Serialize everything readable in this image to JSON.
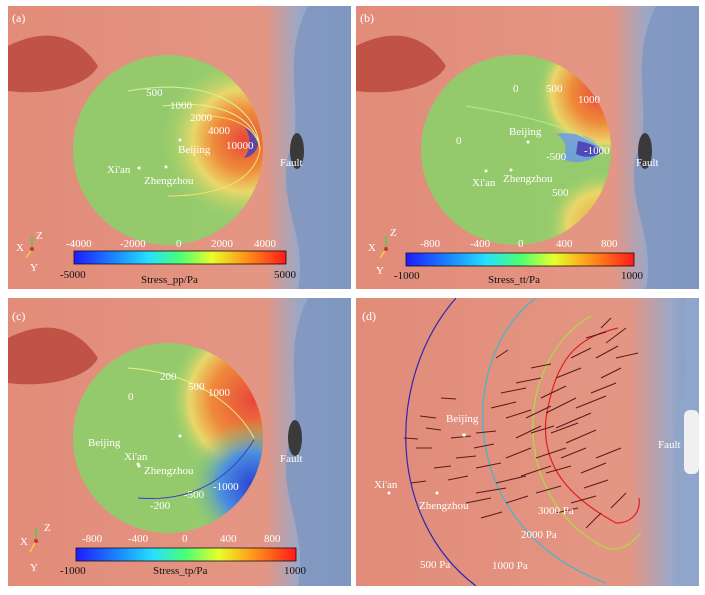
{
  "panels": {
    "a": {
      "tag": "(a)",
      "contours": [
        "500",
        "1000",
        "2000",
        "4000",
        "10000"
      ],
      "cities": [
        "Beijing",
        "Xi'an",
        "Zhengzhou"
      ],
      "fault": "Fault",
      "axes": [
        "X",
        "Y",
        "Z"
      ],
      "colorbar": {
        "ticks": [
          "-4000",
          "-2000",
          "0",
          "2000",
          "4000"
        ],
        "min": "-5000",
        "max": "5000",
        "label": "Stress_pp/Pa"
      }
    },
    "b": {
      "tag": "(b)",
      "contours": [
        "0",
        "500",
        "1000",
        "0",
        "-500",
        "-1000",
        "500"
      ],
      "cities": [
        "Beijing",
        "Xi'an",
        "Zhengzhou"
      ],
      "fault": "Fault",
      "axes": [
        "X",
        "Y",
        "Z"
      ],
      "colorbar": {
        "ticks": [
          "-800",
          "-400",
          "0",
          "400",
          "800"
        ],
        "min": "-1000",
        "max": "1000",
        "label": "Stress_tt/Pa"
      }
    },
    "c": {
      "tag": "(c)",
      "contours": [
        "200",
        "0",
        "500",
        "1000",
        "-1000",
        "-500",
        "-200"
      ],
      "cities": [
        "Beijing",
        "Xi'an",
        "Zhengzhou"
      ],
      "fault": "Fault",
      "axes": [
        "X",
        "Y",
        "Z"
      ],
      "colorbar": {
        "ticks": [
          "-800",
          "-400",
          "0",
          "400",
          "800"
        ],
        "min": "-1000",
        "max": "1000",
        "label": "Stress_tp/Pa"
      }
    },
    "d": {
      "tag": "(d)",
      "cities": [
        "Beijing",
        "Xi'an",
        "Zhengzhou"
      ],
      "fault": "Fault",
      "contours": [
        "3000 Pa",
        "2000 Pa",
        "1000 Pa",
        "500 Pa"
      ]
    }
  },
  "colors": {
    "ocean": "#7f97bf",
    "land": "#e08a78",
    "plateau": "#c0463c",
    "disk_green": "#8ecf6a",
    "hot": "#e8463a",
    "cold": "#4a3fb4"
  }
}
